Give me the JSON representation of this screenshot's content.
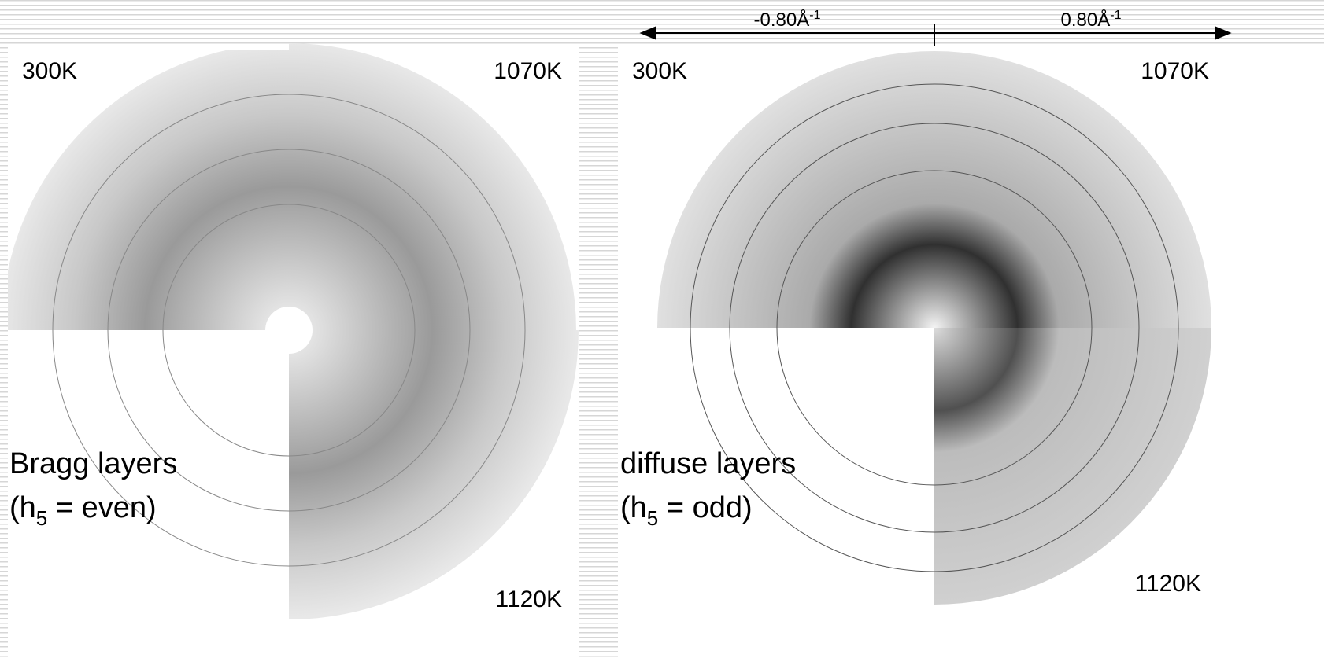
{
  "scale": {
    "left": {
      "text": "-0.80Å",
      "sup": "-1"
    },
    "right": {
      "text": "0.80Å",
      "sup": "-1"
    }
  },
  "bragg_panel": {
    "label_top_left": "300K",
    "label_top_right": "1070K",
    "label_bottom_right": "1120K",
    "title": "Bragg layers",
    "condition": {
      "open": "(h",
      "sub": "5",
      "close": " = even)"
    }
  },
  "diffuse_panel": {
    "label_top_left": "300K",
    "label_top_right": "1070K",
    "label_bottom_right": "1120K",
    "title": "diffuse layers",
    "condition": {
      "open": "(h",
      "sub": "5",
      "close": " = odd)"
    }
  }
}
